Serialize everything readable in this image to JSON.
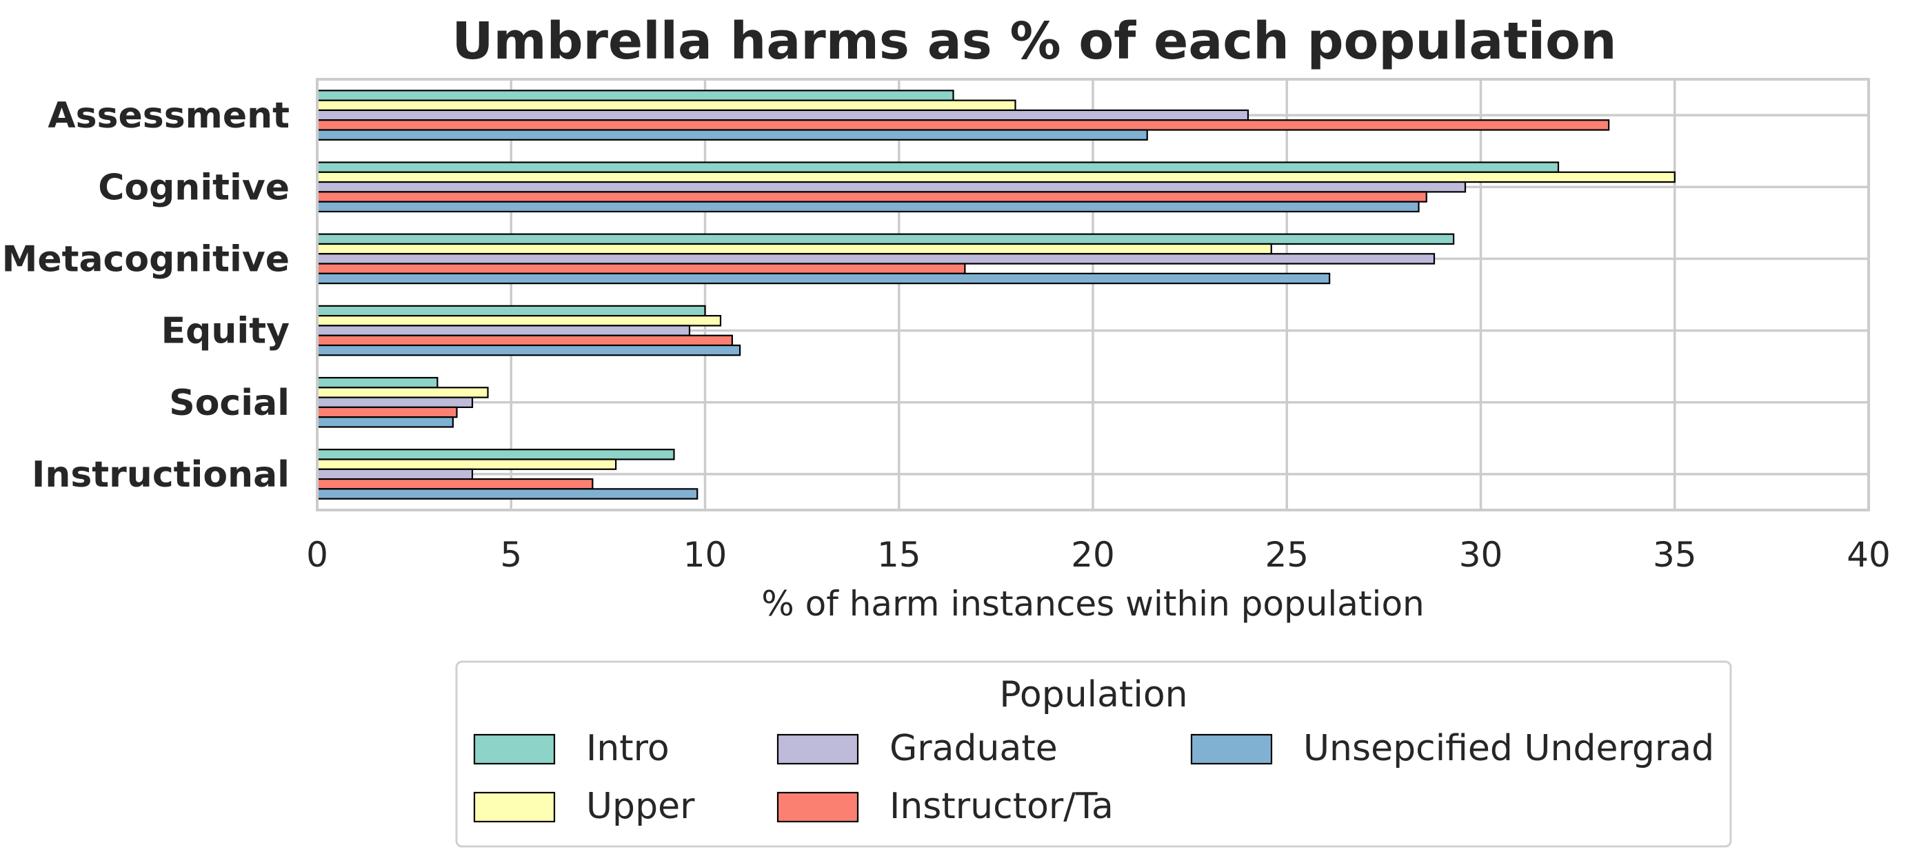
{
  "chart_data": {
    "type": "bar",
    "orientation": "horizontal",
    "title": "Umbrella harms as % of each population",
    "xlabel": "% of harm instances within population",
    "ylabel": "",
    "xlim": [
      0,
      40
    ],
    "xticks": [
      0,
      5,
      10,
      15,
      20,
      25,
      30,
      35,
      40
    ],
    "grid": true,
    "categories": [
      "Assessment",
      "Cognitive",
      "Metacognitive",
      "Equity",
      "Social",
      "Instructional"
    ],
    "series": [
      {
        "name": "Intro",
        "color": "#8dd3c7",
        "values": [
          16.4,
          32.0,
          29.3,
          10.0,
          3.1,
          9.2
        ]
      },
      {
        "name": "Upper",
        "color": "#ffffb3",
        "values": [
          18.0,
          35.0,
          24.6,
          10.4,
          4.4,
          7.7
        ]
      },
      {
        "name": "Graduate",
        "color": "#bebada",
        "values": [
          24.0,
          29.6,
          28.8,
          9.6,
          4.0,
          4.0
        ]
      },
      {
        "name": "Instructor/Ta",
        "color": "#fb8072",
        "values": [
          33.3,
          28.6,
          16.7,
          10.7,
          3.6,
          7.1
        ]
      },
      {
        "name": "Unsepcified Undergrad",
        "color": "#80b1d3",
        "values": [
          21.4,
          28.4,
          26.1,
          10.9,
          3.5,
          9.8
        ]
      }
    ],
    "legend": {
      "title": "Population",
      "placement": "below"
    }
  }
}
